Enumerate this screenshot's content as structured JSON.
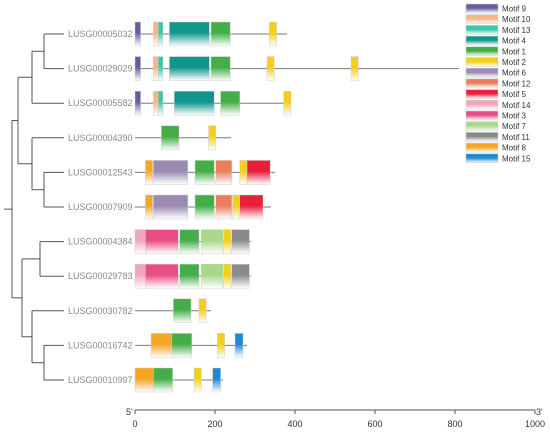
{
  "chart_data": {
    "type": "gene-structure",
    "x_axis": {
      "min": 0,
      "max": 1000,
      "ticks": [
        0,
        200,
        400,
        600,
        800,
        1000
      ],
      "tick_labels": [
        "0",
        "200",
        "400",
        "600",
        "800",
        "1000"
      ],
      "start_label": "5'",
      "end_label": "3'"
    },
    "motif_colors": {
      "Motif 9": [
        "#ffffff",
        "#6b5b9a"
      ],
      "Motif 10": [
        "#ffffff",
        "#f5b785"
      ],
      "Motif 13": [
        "#ffffff",
        "#3cc8a8"
      ],
      "Motif 4": [
        "#ffffff",
        "#10968c"
      ],
      "Motif 1": [
        "#ffffff",
        "#44ad48"
      ],
      "Motif 2": [
        "#ffffff",
        "#f2cf1a"
      ],
      "Motif 6": [
        "#ffffff",
        "#9a8ab0"
      ],
      "Motif 12": [
        "#ffffff",
        "#ec7d5c"
      ],
      "Motif 5": [
        "#ffffff",
        "#e81e3a"
      ],
      "Motif 14": [
        "#ffffff",
        "#f0a7b8"
      ],
      "Motif 3": [
        "#ffffff",
        "#e84d86"
      ],
      "Motif 7": [
        "#ffffff",
        "#a8d989"
      ],
      "Motif 11": [
        "#ffffff",
        "#8a8a8a"
      ],
      "Motif 8": [
        "#ffffff",
        "#f5a623"
      ],
      "Motif 15": [
        "#ffffff",
        "#1e88d4"
      ]
    },
    "legend": [
      "Motif 9",
      "Motif 10",
      "Motif 13",
      "Motif 4",
      "Motif 1",
      "Motif 2",
      "Motif 6",
      "Motif 12",
      "Motif 5",
      "Motif 14",
      "Motif 3",
      "Motif 7",
      "Motif 11",
      "Motif 8",
      "Motif 15"
    ],
    "genes": [
      {
        "name": "LUSG00005032",
        "length": 380,
        "motifs": [
          {
            "motif": "Motif 9",
            "start": 0,
            "end": 14
          },
          {
            "motif": "Motif 10",
            "start": 46,
            "end": 58
          },
          {
            "motif": "Motif 13",
            "start": 58,
            "end": 70
          },
          {
            "motif": "Motif 4",
            "start": 86,
            "end": 186
          },
          {
            "motif": "Motif 1",
            "start": 190,
            "end": 238
          },
          {
            "motif": "Motif 2",
            "start": 336,
            "end": 354
          }
        ]
      },
      {
        "name": "LUSG00029029",
        "length": 810,
        "motifs": [
          {
            "motif": "Motif 9",
            "start": 0,
            "end": 14
          },
          {
            "motif": "Motif 10",
            "start": 46,
            "end": 58
          },
          {
            "motif": "Motif 13",
            "start": 58,
            "end": 70
          },
          {
            "motif": "Motif 4",
            "start": 86,
            "end": 186
          },
          {
            "motif": "Motif 1",
            "start": 190,
            "end": 238
          },
          {
            "motif": "Motif 2",
            "start": 330,
            "end": 348
          },
          {
            "motif": "Motif 2",
            "start": 540,
            "end": 558
          }
        ]
      },
      {
        "name": "LUSG00005582",
        "length": 390,
        "motifs": [
          {
            "motif": "Motif 9",
            "start": 0,
            "end": 14
          },
          {
            "motif": "Motif 10",
            "start": 46,
            "end": 58
          },
          {
            "motif": "Motif 13",
            "start": 58,
            "end": 70
          },
          {
            "motif": "Motif 4",
            "start": 98,
            "end": 198
          },
          {
            "motif": "Motif 1",
            "start": 214,
            "end": 262
          },
          {
            "motif": "Motif 2",
            "start": 372,
            "end": 390
          }
        ]
      },
      {
        "name": "LUSG00004390",
        "length": 240,
        "motifs": [
          {
            "motif": "Motif 1",
            "start": 66,
            "end": 110
          },
          {
            "motif": "Motif 2",
            "start": 184,
            "end": 202
          }
        ]
      },
      {
        "name": "LUSG00012543",
        "length": 350,
        "motifs": [
          {
            "motif": "Motif 8",
            "start": 26,
            "end": 44
          },
          {
            "motif": "Motif 6",
            "start": 46,
            "end": 132
          },
          {
            "motif": "Motif 1",
            "start": 150,
            "end": 198
          },
          {
            "motif": "Motif 12",
            "start": 202,
            "end": 242
          },
          {
            "motif": "Motif 2",
            "start": 262,
            "end": 280
          },
          {
            "motif": "Motif 5",
            "start": 280,
            "end": 338
          }
        ]
      },
      {
        "name": "LUSG00007909",
        "length": 340,
        "motifs": [
          {
            "motif": "Motif 8",
            "start": 26,
            "end": 44
          },
          {
            "motif": "Motif 6",
            "start": 46,
            "end": 132
          },
          {
            "motif": "Motif 1",
            "start": 150,
            "end": 198
          },
          {
            "motif": "Motif 12",
            "start": 202,
            "end": 242
          },
          {
            "motif": "Motif 2",
            "start": 244,
            "end": 262
          },
          {
            "motif": "Motif 5",
            "start": 262,
            "end": 320
          }
        ]
      },
      {
        "name": "LUSG00004384",
        "length": 290,
        "motifs": [
          {
            "motif": "Motif 14",
            "start": 0,
            "end": 26
          },
          {
            "motif": "Motif 3",
            "start": 26,
            "end": 108
          },
          {
            "motif": "Motif 1",
            "start": 112,
            "end": 160
          },
          {
            "motif": "Motif 7",
            "start": 166,
            "end": 220
          },
          {
            "motif": "Motif 2",
            "start": 222,
            "end": 240
          },
          {
            "motif": "Motif 11",
            "start": 242,
            "end": 286
          }
        ]
      },
      {
        "name": "LUSG00029783",
        "length": 290,
        "motifs": [
          {
            "motif": "Motif 14",
            "start": 0,
            "end": 26
          },
          {
            "motif": "Motif 3",
            "start": 26,
            "end": 108
          },
          {
            "motif": "Motif 1",
            "start": 112,
            "end": 160
          },
          {
            "motif": "Motif 7",
            "start": 166,
            "end": 220
          },
          {
            "motif": "Motif 2",
            "start": 222,
            "end": 240
          },
          {
            "motif": "Motif 11",
            "start": 242,
            "end": 286
          }
        ]
      },
      {
        "name": "LUSG00030782",
        "length": 190,
        "motifs": [
          {
            "motif": "Motif 1",
            "start": 96,
            "end": 140
          },
          {
            "motif": "Motif 2",
            "start": 160,
            "end": 178
          }
        ]
      },
      {
        "name": "LUSG00016742",
        "length": 280,
        "motifs": [
          {
            "motif": "Motif 8",
            "start": 40,
            "end": 92
          },
          {
            "motif": "Motif 1",
            "start": 92,
            "end": 142
          },
          {
            "motif": "Motif 2",
            "start": 206,
            "end": 224
          },
          {
            "motif": "Motif 15",
            "start": 250,
            "end": 270
          }
        ]
      },
      {
        "name": "LUSG00010997",
        "length": 220,
        "motifs": [
          {
            "motif": "Motif 8",
            "start": 0,
            "end": 46
          },
          {
            "motif": "Motif 1",
            "start": 46,
            "end": 94
          },
          {
            "motif": "Motif 2",
            "start": 148,
            "end": 166
          },
          {
            "motif": "Motif 15",
            "start": 194,
            "end": 214
          }
        ]
      }
    ]
  }
}
